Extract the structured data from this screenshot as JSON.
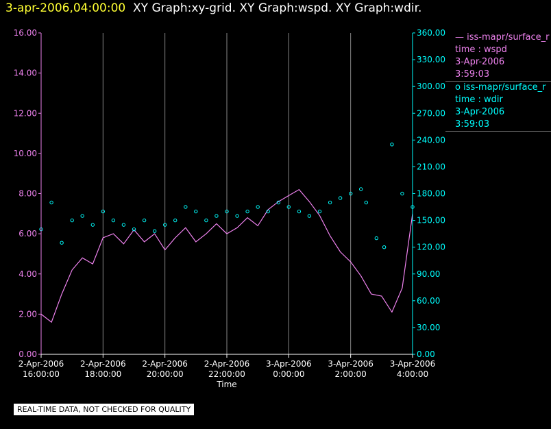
{
  "title": {
    "timestamp": "3-apr-2006,04:00:00",
    "text": "XY Graph:xy-grid.  XY Graph:wspd.  XY Graph:wdir."
  },
  "legend": {
    "items": [
      {
        "marker": "—",
        "lines": [
          "iss-mapr/surface_r",
          "time : wspd",
          "3-Apr-2006",
          "3:59:03"
        ],
        "color": "#ee82ee"
      },
      {
        "marker": "o",
        "lines": [
          "iss-mapr/surface_r",
          "time : wdir",
          "3-Apr-2006",
          "3:59:03"
        ],
        "color": "#00ffff"
      }
    ]
  },
  "footer": {
    "qc_label": "REAL-TIME DATA, NOT CHECKED FOR QUALITY"
  },
  "colors": {
    "wspd": "#ee82ee",
    "wdir": "#00ffff",
    "grid": "#888888",
    "axis": "#ffffff",
    "background": "#000000",
    "title_time": "#ffff33"
  },
  "chart_data": {
    "type": "line",
    "xlabel": "Time",
    "x_ticks": [
      {
        "value": "2006-04-02T16:00",
        "label": [
          "2-Apr-2006",
          "16:00:00"
        ]
      },
      {
        "value": "2006-04-02T18:00",
        "label": [
          "2-Apr-2006",
          "18:00:00"
        ]
      },
      {
        "value": "2006-04-02T20:00",
        "label": [
          "2-Apr-2006",
          "20:00:00"
        ]
      },
      {
        "value": "2006-04-02T22:00",
        "label": [
          "2-Apr-2006",
          "22:00:00"
        ]
      },
      {
        "value": "2006-04-03T00:00",
        "label": [
          "3-Apr-2006",
          "0:00:00"
        ]
      },
      {
        "value": "2006-04-03T02:00",
        "label": [
          "3-Apr-2006",
          "2:00:00"
        ]
      },
      {
        "value": "2006-04-03T04:00",
        "label": [
          "3-Apr-2006",
          "4:00:00"
        ]
      }
    ],
    "xlim": [
      "2006-04-02T16:00",
      "2006-04-03T04:00"
    ],
    "y_left": {
      "ylim": [
        0,
        16
      ],
      "ticks": [
        "0.00",
        "2.00",
        "4.00",
        "6.00",
        "8.00",
        "10.00",
        "12.00",
        "14.00",
        "16.00"
      ]
    },
    "y_right": {
      "ylim": [
        0,
        360
      ],
      "ticks": [
        "0.00",
        "30.00",
        "60.00",
        "90.00",
        "120.00",
        "150.00",
        "180.00",
        "210.00",
        "240.00",
        "270.00",
        "300.00",
        "330.00",
        "360.00"
      ]
    },
    "grid": "vertical only",
    "series": [
      {
        "name": "iss-mapr/surface_r time : wspd",
        "axis": "left",
        "style": "line",
        "x": [
          "2006-04-02T16:00",
          "2006-04-02T16:20",
          "2006-04-02T16:40",
          "2006-04-02T17:00",
          "2006-04-02T17:20",
          "2006-04-02T17:40",
          "2006-04-02T18:00",
          "2006-04-02T18:20",
          "2006-04-02T18:40",
          "2006-04-02T19:00",
          "2006-04-02T19:20",
          "2006-04-02T19:40",
          "2006-04-02T20:00",
          "2006-04-02T20:20",
          "2006-04-02T20:40",
          "2006-04-02T21:00",
          "2006-04-02T21:20",
          "2006-04-02T21:40",
          "2006-04-02T22:00",
          "2006-04-02T22:20",
          "2006-04-02T22:40",
          "2006-04-02T23:00",
          "2006-04-02T23:20",
          "2006-04-02T23:40",
          "2006-04-03T00:00",
          "2006-04-03T00:20",
          "2006-04-03T00:40",
          "2006-04-03T01:00",
          "2006-04-03T01:20",
          "2006-04-03T01:40",
          "2006-04-03T02:00",
          "2006-04-03T02:20",
          "2006-04-03T02:40",
          "2006-04-03T03:00",
          "2006-04-03T03:20",
          "2006-04-03T03:40",
          "2006-04-03T04:00"
        ],
        "values": [
          2.0,
          1.6,
          3.0,
          4.2,
          4.8,
          4.5,
          5.8,
          6.0,
          5.5,
          6.2,
          5.6,
          6.0,
          5.2,
          5.8,
          6.3,
          5.6,
          6.0,
          6.5,
          6.0,
          6.3,
          6.8,
          6.4,
          7.2,
          7.6,
          7.9,
          8.2,
          7.6,
          6.9,
          5.9,
          5.1,
          4.6,
          3.9,
          3.0,
          2.9,
          2.1,
          3.3,
          7.0
        ]
      },
      {
        "name": "iss-mapr/surface_r time : wdir",
        "axis": "right",
        "style": "circles",
        "x": [
          "2006-04-02T16:00",
          "2006-04-02T16:20",
          "2006-04-02T16:40",
          "2006-04-02T17:00",
          "2006-04-02T17:20",
          "2006-04-02T17:40",
          "2006-04-02T18:00",
          "2006-04-02T18:20",
          "2006-04-02T18:40",
          "2006-04-02T19:00",
          "2006-04-02T19:20",
          "2006-04-02T19:40",
          "2006-04-02T20:00",
          "2006-04-02T20:20",
          "2006-04-02T20:40",
          "2006-04-02T21:00",
          "2006-04-02T21:20",
          "2006-04-02T21:40",
          "2006-04-02T22:00",
          "2006-04-02T22:20",
          "2006-04-02T22:40",
          "2006-04-02T23:00",
          "2006-04-02T23:20",
          "2006-04-02T23:40",
          "2006-04-03T00:00",
          "2006-04-03T00:20",
          "2006-04-03T00:40",
          "2006-04-03T01:00",
          "2006-04-03T01:20",
          "2006-04-03T01:40",
          "2006-04-03T02:00",
          "2006-04-03T02:20",
          "2006-04-03T02:30",
          "2006-04-03T02:50",
          "2006-04-03T03:05",
          "2006-04-03T03:20",
          "2006-04-03T03:40",
          "2006-04-03T04:00"
        ],
        "values": [
          140,
          170,
          125,
          150,
          155,
          145,
          160,
          150,
          145,
          140,
          150,
          138,
          145,
          150,
          165,
          160,
          150,
          155,
          160,
          155,
          160,
          165,
          160,
          170,
          165,
          160,
          155,
          160,
          170,
          175,
          180,
          185,
          170,
          130,
          120,
          235,
          180,
          165
        ]
      }
    ]
  }
}
